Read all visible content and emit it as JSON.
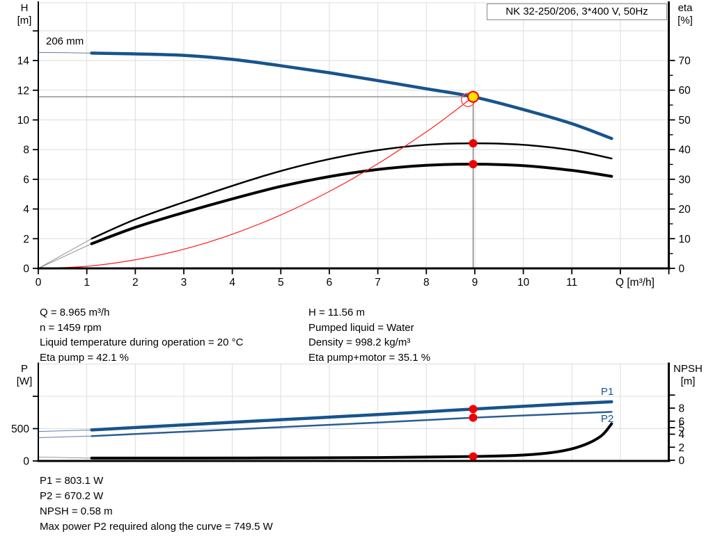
{
  "title_box": {
    "label": "NK 32-250/206, 3*400 V, 50Hz"
  },
  "colors": {
    "curve_blue": "#17548C",
    "system_red": "#FF1A1A",
    "dot_red": "#F00000",
    "duty_yellow": "#FFE400",
    "black": "#000000",
    "grid": "#DCDCDC",
    "crosshair": "#6F6F6F",
    "lead_gray": "#8F8F8F",
    "lead_blue": "#5A7FA6"
  },
  "info_top": {
    "left": [
      "Q = 8.965 m³/h",
      "n = 1459 rpm",
      "Liquid temperature during operation = 20 °C",
      "Eta pump = 42.1 %"
    ],
    "right": [
      "H = 11.56 m",
      "Pumped liquid = Water",
      "Density = 998.2 kg/m³",
      "Eta pump+motor = 35.1 %"
    ]
  },
  "info_bottom": [
    "P1 = 803.1 W",
    "P2 = 670.2 W",
    "NPSH = 0.58 m",
    "Max power P2 required along the curve = 749.5 W"
  ],
  "chart_data": [
    {
      "type": "line",
      "name": "head-efficiency-chart",
      "title": "NK 32-250/206, 3*400 V, 50Hz",
      "x": {
        "label": "Q [m³/h]",
        "range": [
          0,
          13
        ],
        "ticks": [
          0,
          1,
          2,
          3,
          4,
          5,
          6,
          7,
          8,
          9,
          10,
          11
        ],
        "unlabeled_ticks": [
          12,
          13
        ],
        "grid_step": 1
      },
      "y_left": {
        "label_line1": "H",
        "label_line2": "[m]",
        "range": [
          0,
          17.9
        ],
        "ticks": [
          0,
          2,
          4,
          6,
          8,
          10,
          12,
          14
        ],
        "unlabeled_ticks": [
          16
        ]
      },
      "y_right": {
        "label_line1": "eta",
        "label_line2": "[%]",
        "range": [
          0,
          89
        ],
        "ticks": [
          0,
          10,
          20,
          30,
          40,
          50,
          60,
          70
        ],
        "minor_ticks": [
          5,
          15,
          25,
          35,
          45,
          55,
          65
        ]
      },
      "series": [
        {
          "name": "head-curve",
          "label": "206 mm",
          "axis": "left",
          "color": "#17548C",
          "lead_color": "#5A7FA6",
          "width": 4.5,
          "lead": [
            [
              0,
              14.55
            ],
            [
              0.6,
              14.53
            ],
            [
              1.1,
              14.5
            ]
          ],
          "points": [
            [
              1.1,
              14.5
            ],
            [
              2,
              14.45
            ],
            [
              3,
              14.35
            ],
            [
              4,
              14.08
            ],
            [
              5,
              13.65
            ],
            [
              6,
              13.18
            ],
            [
              7,
              12.65
            ],
            [
              8,
              12.1
            ],
            [
              8.965,
              11.56
            ],
            [
              10,
              10.7
            ],
            [
              11,
              9.75
            ],
            [
              11.82,
              8.75
            ]
          ]
        },
        {
          "name": "eta-pump-curve",
          "axis": "right",
          "color": "#000000",
          "lead_color": "#8F8F8F",
          "width": 2.5,
          "lead": [
            [
              0,
              0
            ],
            [
              1.1,
              10
            ]
          ],
          "points": [
            [
              1.1,
              10
            ],
            [
              2,
              16.5
            ],
            [
              3,
              22.3
            ],
            [
              4,
              27.8
            ],
            [
              5,
              32.8
            ],
            [
              6,
              36.8
            ],
            [
              7,
              39.8
            ],
            [
              8,
              41.6
            ],
            [
              8.965,
              42.1
            ],
            [
              10,
              41.6
            ],
            [
              11,
              39.8
            ],
            [
              11.82,
              37
            ]
          ]
        },
        {
          "name": "eta-pump-motor-curve",
          "axis": "right",
          "color": "#000000",
          "lead_color": "#8F8F8F",
          "width": 4,
          "lead": [
            [
              0,
              0
            ],
            [
              1.1,
              8.3
            ]
          ],
          "points": [
            [
              1.1,
              8.3
            ],
            [
              2,
              13.8
            ],
            [
              3,
              18.8
            ],
            [
              4,
              23.4
            ],
            [
              5,
              27.6
            ],
            [
              6,
              30.9
            ],
            [
              7,
              33.3
            ],
            [
              8,
              34.7
            ],
            [
              8.965,
              35.1
            ],
            [
              10,
              34.6
            ],
            [
              11,
              33
            ],
            [
              11.82,
              31
            ]
          ]
        },
        {
          "name": "system-curve",
          "axis": "left",
          "color": "#FF1A1A",
          "width": 1.2,
          "points": [
            [
              0,
              0
            ],
            [
              1,
              0.14
            ],
            [
              2,
              0.58
            ],
            [
              3,
              1.29
            ],
            [
              4,
              2.3
            ],
            [
              5,
              3.6
            ],
            [
              6,
              5.18
            ],
            [
              7,
              7.05
            ],
            [
              8,
              9.2
            ],
            [
              8.5,
              10.39
            ],
            [
              8.965,
              11.56
            ]
          ]
        }
      ],
      "crosshair": {
        "q": 8.965,
        "h": 11.56
      },
      "markers": [
        {
          "name": "system-intersection-circle",
          "axis": "left",
          "q": 8.86,
          "v": 11.35,
          "r": 9.5,
          "fill": "none",
          "stroke": "#FF5050",
          "stroke_w": 1.5
        },
        {
          "name": "duty-point",
          "axis": "left",
          "q": 8.965,
          "v": 11.56,
          "r": 7.5,
          "fill": "#FFE400",
          "stroke": "#FF0000",
          "stroke_w": 2
        },
        {
          "name": "eta-pump-point",
          "axis": "right",
          "q": 8.965,
          "v": 42.1,
          "r": 6,
          "fill": "#F00000",
          "stroke": "none",
          "stroke_w": 0
        },
        {
          "name": "eta-pump-motor-point",
          "axis": "right",
          "q": 8.965,
          "v": 35.1,
          "r": 6,
          "fill": "#F00000",
          "stroke": "none",
          "stroke_w": 0
        }
      ]
    },
    {
      "type": "line",
      "name": "power-npsh-chart",
      "x": {
        "label": "",
        "range": [
          0,
          13
        ],
        "grid_step": 1
      },
      "y_left": {
        "label_line1": "P",
        "label_line2": "[W]",
        "range": [
          0,
          1500
        ],
        "ticks": [
          0,
          500
        ],
        "unlabeled_ticks": [
          1000
        ]
      },
      "y_right": {
        "label_line1": "NPSH",
        "label_line2": "[m]",
        "range": [
          0,
          15
        ],
        "ticks": [
          0,
          2,
          4,
          5,
          6,
          8
        ],
        "unlabeled_ticks": [
          10
        ]
      },
      "series": [
        {
          "name": "p1-curve",
          "label": "P1",
          "axis": "left",
          "color": "#17548C",
          "lead_color": "#5A7FA6",
          "width": 4.5,
          "lead": [
            [
              0,
              455
            ],
            [
              1.1,
              480
            ]
          ],
          "points": [
            [
              1.1,
              480
            ],
            [
              3,
              558
            ],
            [
              5,
              638
            ],
            [
              7,
              718
            ],
            [
              8.965,
              803
            ],
            [
              10,
              845
            ],
            [
              11,
              886
            ],
            [
              11.82,
              915
            ]
          ]
        },
        {
          "name": "p2-curve",
          "label": "P2",
          "axis": "left",
          "color": "#2A5E93",
          "lead_color": "#5A7FA6",
          "width": 2.5,
          "lead": [
            [
              0,
              360
            ],
            [
              1.1,
              385
            ]
          ],
          "points": [
            [
              1.1,
              385
            ],
            [
              3,
              452
            ],
            [
              5,
              523
            ],
            [
              7,
              594
            ],
            [
              8.965,
              670
            ],
            [
              10,
              703
            ],
            [
              11,
              734
            ],
            [
              11.82,
              760
            ]
          ]
        },
        {
          "name": "npsh-curve",
          "axis": "right",
          "color": "#000000",
          "lead_color": "#8F8F8F",
          "width": 4,
          "lead": [
            [
              0,
              0.5
            ],
            [
              1.1,
              0.33
            ]
          ],
          "points": [
            [
              1.1,
              0.33
            ],
            [
              3,
              0.34
            ],
            [
              5,
              0.36
            ],
            [
              7,
              0.42
            ],
            [
              8.965,
              0.58
            ],
            [
              10,
              0.8
            ],
            [
              10.7,
              1.3
            ],
            [
              11.2,
              2.2
            ],
            [
              11.6,
              3.7
            ],
            [
              11.82,
              5.6
            ]
          ]
        }
      ],
      "markers": [
        {
          "name": "p1-point",
          "axis": "left",
          "q": 8.965,
          "v": 803,
          "r": 6,
          "fill": "#F00000",
          "stroke": "none",
          "stroke_w": 0
        },
        {
          "name": "p2-point",
          "axis": "left",
          "q": 8.965,
          "v": 670,
          "r": 6,
          "fill": "#F00000",
          "stroke": "none",
          "stroke_w": 0
        },
        {
          "name": "npsh-point",
          "axis": "right",
          "q": 8.965,
          "v": 0.58,
          "r": 6,
          "fill": "#F00000",
          "stroke": "none",
          "stroke_w": 0
        }
      ]
    }
  ]
}
